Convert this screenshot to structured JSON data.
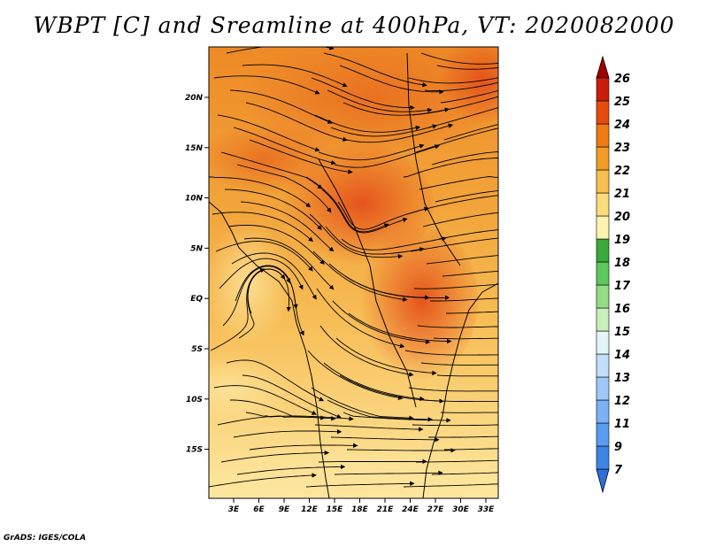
{
  "title": "WBPT [C] and Sreamline at 400hPa, VT: 2020082000",
  "credit": "GrADS: IGES/COLA",
  "map": {
    "lon_ticks": [
      "3E",
      "6E",
      "9E",
      "12E",
      "15E",
      "18E",
      "21E",
      "24E",
      "27E",
      "30E",
      "33E"
    ],
    "lat_ticks": [
      "20N",
      "15N",
      "10N",
      "5N",
      "EQ",
      "5S",
      "10S",
      "15S"
    ]
  },
  "colorbar": {
    "labels": [
      "7",
      "9",
      "11",
      "12",
      "13",
      "14",
      "15",
      "16",
      "17",
      "18",
      "19",
      "20",
      "21",
      "22",
      "23",
      "24",
      "25",
      "26"
    ],
    "colors": [
      "#2c6fd8",
      "#3d86e8",
      "#5a9cf0",
      "#7ab2f5",
      "#9dc8f8",
      "#c2dff9",
      "#e4f5f6",
      "#c9efb9",
      "#92dd84",
      "#5bc85a",
      "#3aaa3a",
      "#fff3b0",
      "#fcdc7a",
      "#f7bf4f",
      "#f39c25",
      "#ef7b12",
      "#e84c0c",
      "#c81e0a",
      "#a00000"
    ]
  }
}
